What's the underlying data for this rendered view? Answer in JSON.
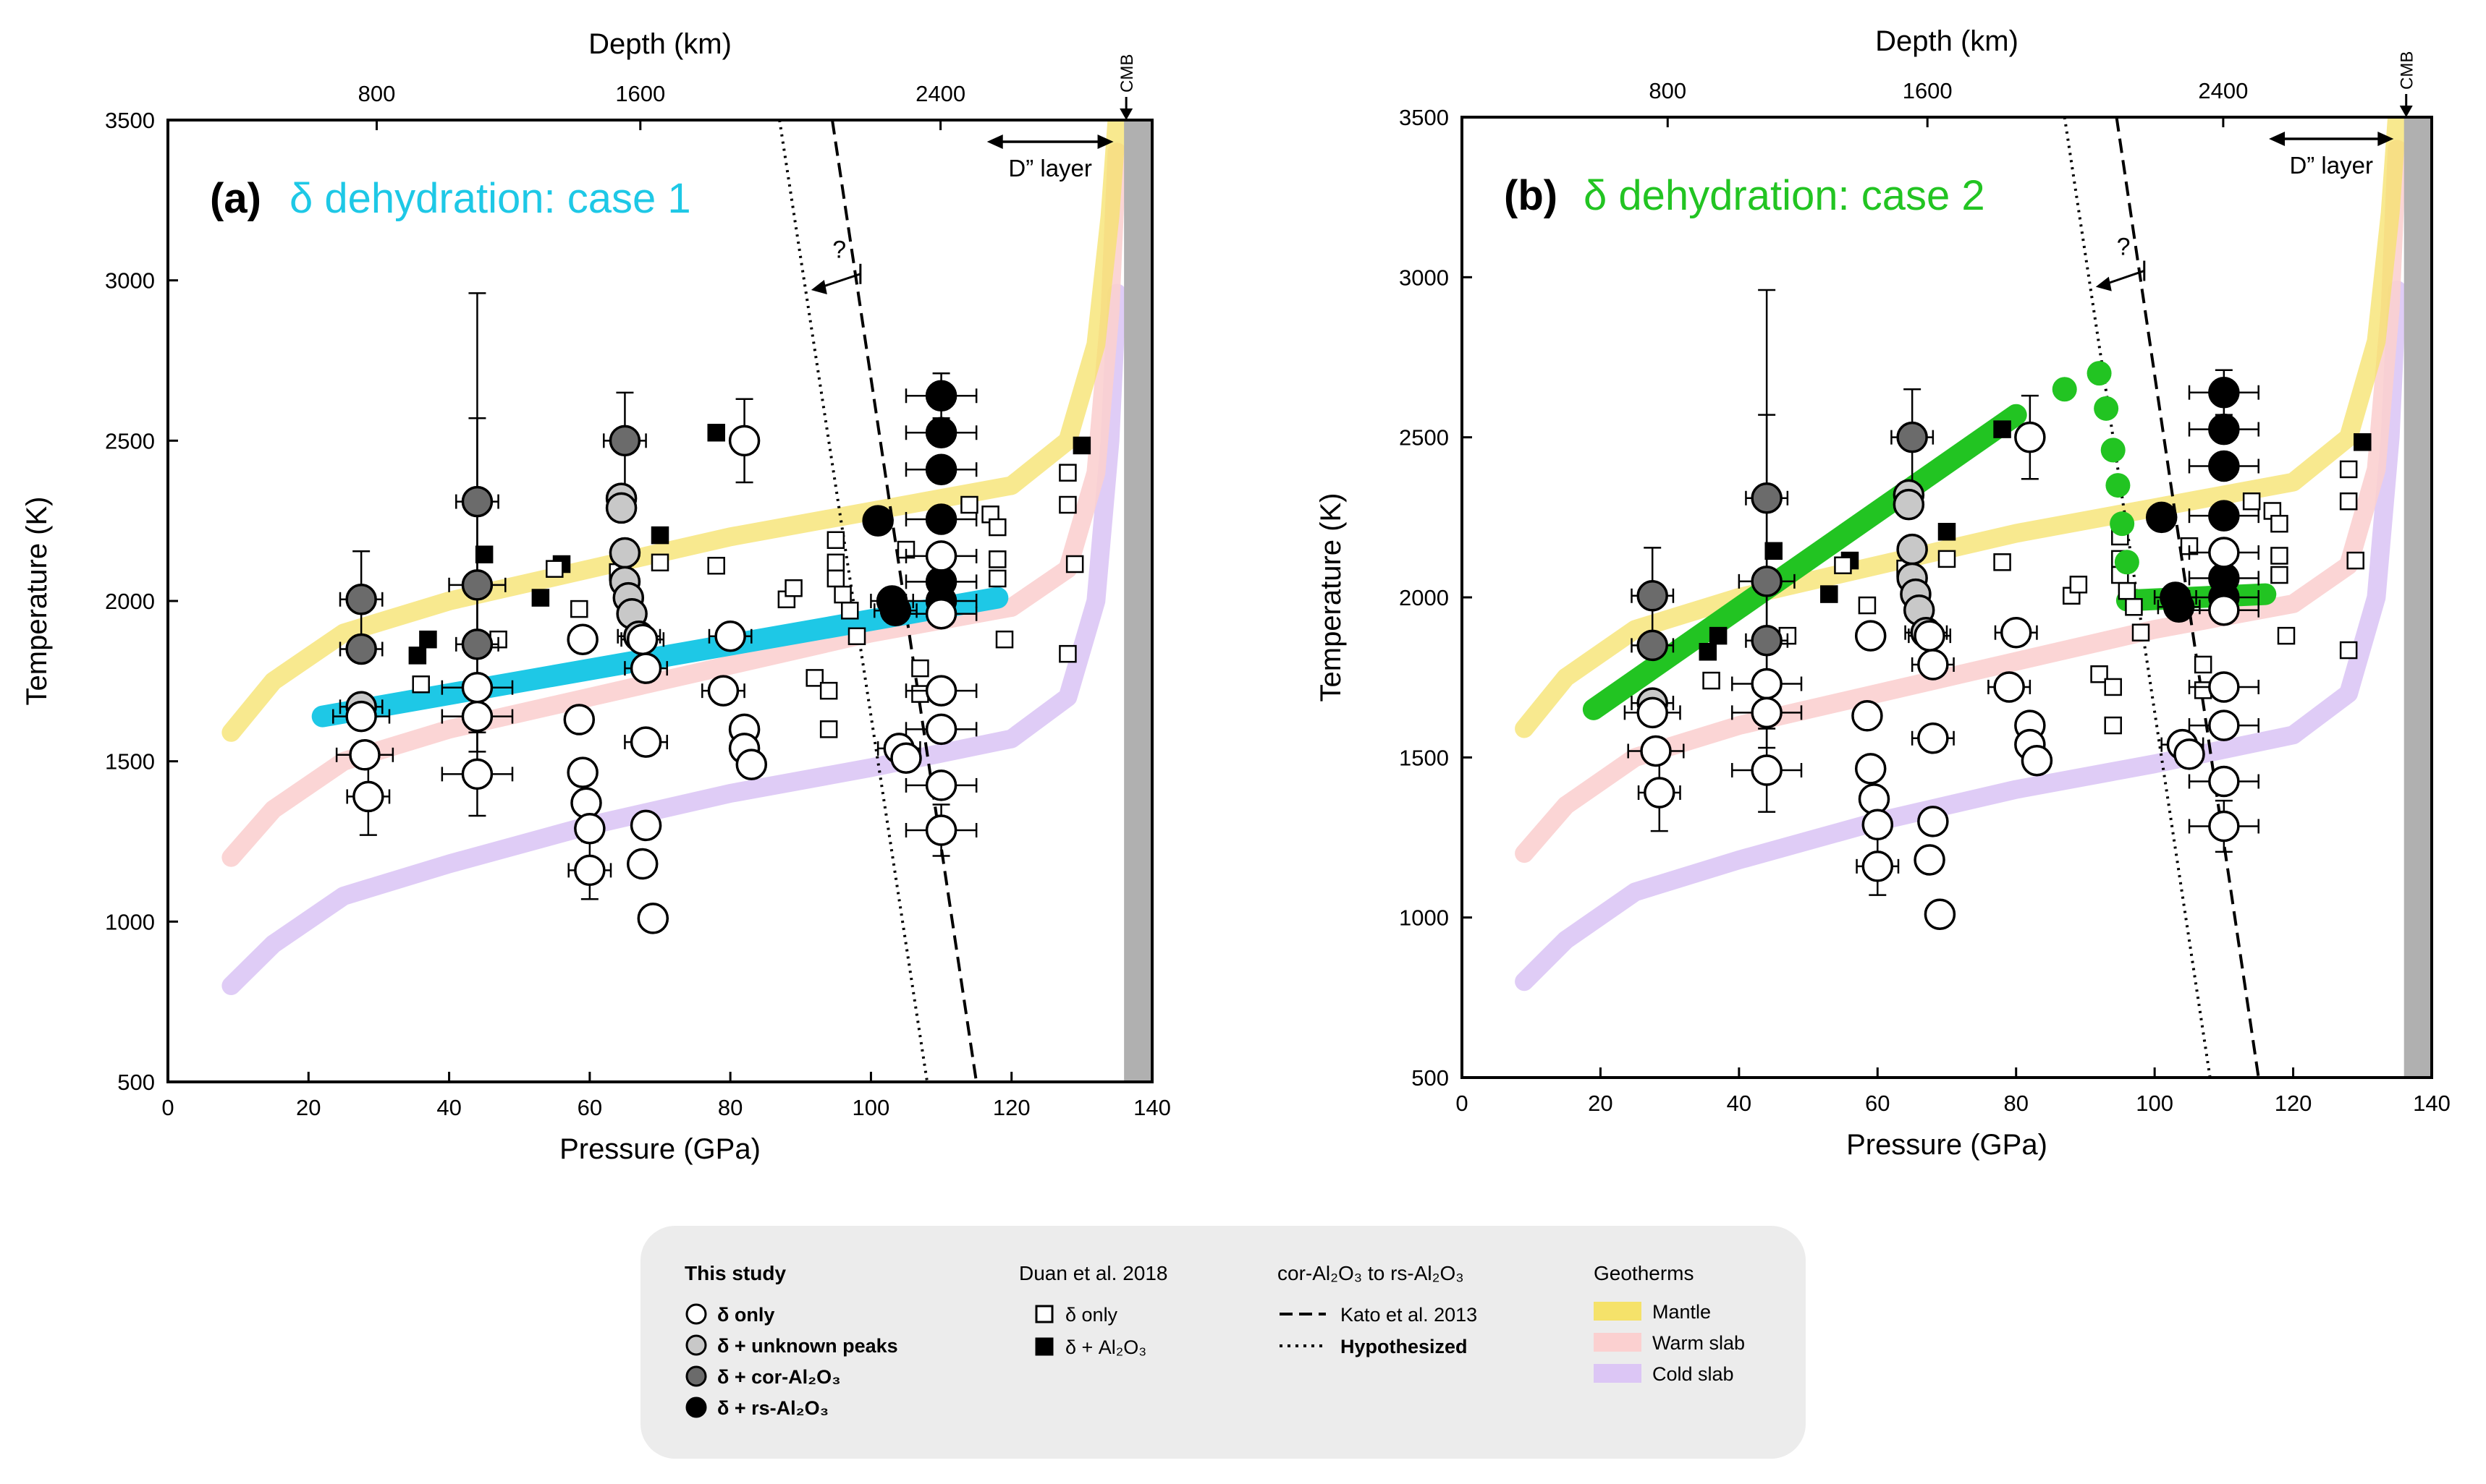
{
  "chart_data": [
    {
      "type": "scatter",
      "panel_label": "(a)",
      "title": "δ dehydration: case 1",
      "title_color": "#1ec8e6",
      "xlabel": "Pressure (GPa)",
      "ylabel": "Temperature (K)",
      "top_xlabel": "Depth (km)",
      "xlim": [
        0,
        140
      ],
      "ylim": [
        500,
        3500
      ],
      "x_ticks": [
        "0",
        "20",
        "40",
        "60",
        "80",
        "100",
        "120",
        "140"
      ],
      "y_ticks": [
        "500",
        "1000",
        "1500",
        "2000",
        "2500",
        "3000",
        "3500"
      ],
      "top_ticks": [
        {
          "label": "800",
          "x": 29.7
        },
        {
          "label": "1600",
          "x": 67.2
        },
        {
          "label": "2400",
          "x": 109.9
        }
      ],
      "cmb_label": "CMB",
      "dlayer_label": "D” layer",
      "question_mark": "?",
      "dehydration_path": [
        [
          22,
          1640
        ],
        [
          118,
          2010
        ]
      ],
      "dehydration_color": "#1ec8e6"
    },
    {
      "type": "scatter",
      "panel_label": "(b)",
      "title": "δ dehydration: case 2",
      "title_color": "#22c422",
      "xlabel": "Pressure (GPa)",
      "ylabel": "Temperature (K)",
      "top_xlabel": "Depth (km)",
      "xlim": [
        0,
        140
      ],
      "ylim": [
        500,
        3500
      ],
      "x_ticks": [
        "0",
        "20",
        "40",
        "60",
        "80",
        "100",
        "120",
        "140"
      ],
      "y_ticks": [
        "500",
        "1000",
        "1500",
        "2000",
        "2500",
        "3000",
        "3500"
      ],
      "top_ticks": [
        {
          "label": "800",
          "x": 29.7
        },
        {
          "label": "1600",
          "x": 67.2
        },
        {
          "label": "2400",
          "x": 109.9
        }
      ],
      "cmb_label": "CMB",
      "dlayer_label": "D” layer",
      "question_mark": "?",
      "dehydration_path": [
        [
          19,
          1650
        ],
        [
          80,
          2570
        ]
      ],
      "dehydration_dots": [
        [
          87,
          2650
        ],
        [
          92,
          2700
        ],
        [
          93,
          2590
        ],
        [
          94,
          2460
        ],
        [
          94.7,
          2350
        ],
        [
          95.3,
          2230
        ],
        [
          96,
          2110
        ]
      ],
      "dehydration_flat": [
        [
          96,
          1990
        ],
        [
          116,
          2010
        ]
      ],
      "dehydration_color": "#22c422"
    }
  ],
  "shared_data": {
    "geotherms": {
      "mantle": [
        [
          9,
          1590
        ],
        [
          15,
          1750
        ],
        [
          25,
          1900
        ],
        [
          40,
          2000
        ],
        [
          60,
          2100
        ],
        [
          80,
          2200
        ],
        [
          100,
          2280
        ],
        [
          120,
          2360
        ],
        [
          128,
          2500
        ],
        [
          132,
          2800
        ],
        [
          134,
          3200
        ],
        [
          135,
          3500
        ]
      ],
      "warm_slab": [
        [
          9,
          1200
        ],
        [
          15,
          1350
        ],
        [
          25,
          1500
        ],
        [
          40,
          1600
        ],
        [
          60,
          1700
        ],
        [
          80,
          1800
        ],
        [
          100,
          1900
        ],
        [
          120,
          1980
        ],
        [
          128,
          2100
        ],
        [
          132,
          2400
        ],
        [
          134,
          2900
        ],
        [
          135,
          3400
        ]
      ],
      "cold_slab": [
        [
          9,
          800
        ],
        [
          15,
          930
        ],
        [
          25,
          1080
        ],
        [
          40,
          1180
        ],
        [
          60,
          1300
        ],
        [
          80,
          1400
        ],
        [
          100,
          1480
        ],
        [
          120,
          1570
        ],
        [
          128,
          1700
        ],
        [
          132,
          2000
        ],
        [
          134,
          2500
        ],
        [
          135,
          2960
        ]
      ]
    },
    "geotherm_colors": {
      "mantle": "#f5e26a",
      "warm_slab": "#fbd0d0",
      "cold_slab": "#dcc6f5"
    },
    "kato_boundary": [
      [
        94.5,
        3500
      ],
      [
        115,
        500
      ]
    ],
    "hypothesized_boundary": [
      [
        87,
        3500
      ],
      [
        108,
        500
      ]
    ],
    "cmb_pressure": 136,
    "this_study": [
      {
        "p": 27.5,
        "t": 2005,
        "c": "cor",
        "xe": 3,
        "ye": 150
      },
      {
        "p": 27.5,
        "t": 1850,
        "c": "cor",
        "xe": 3,
        "ye": 0
      },
      {
        "p": 27.5,
        "t": 1670,
        "c": "unk",
        "xe": 3,
        "ye": 0
      },
      {
        "p": 27.5,
        "t": 1640,
        "c": "delta",
        "xe": 4,
        "ye": 0
      },
      {
        "p": 28,
        "t": 1520,
        "c": "delta",
        "xe": 4,
        "ye": 0
      },
      {
        "p": 28.5,
        "t": 1390,
        "c": "delta",
        "xe": 3,
        "ye": 120
      },
      {
        "p": 44,
        "t": 2310,
        "c": "cor",
        "xe": 3,
        "ye": 650
      },
      {
        "p": 44,
        "t": 2050,
        "c": "cor",
        "xe": 4,
        "ye": 520
      },
      {
        "p": 44,
        "t": 1865,
        "c": "cor",
        "xe": 3,
        "ye": 0
      },
      {
        "p": 44,
        "t": 1730,
        "c": "delta",
        "xe": 5,
        "ye": 0
      },
      {
        "p": 44,
        "t": 1640,
        "c": "delta",
        "xe": 5,
        "ye": 0
      },
      {
        "p": 44,
        "t": 1460,
        "c": "delta",
        "xe": 5,
        "ye": 130
      },
      {
        "p": 59,
        "t": 1880,
        "c": "delta",
        "xe": 0,
        "ye": 0
      },
      {
        "p": 58.5,
        "t": 1630,
        "c": "delta",
        "xe": 0,
        "ye": 0
      },
      {
        "p": 59,
        "t": 1465,
        "c": "delta",
        "xe": 0,
        "ye": 0
      },
      {
        "p": 59.5,
        "t": 1370,
        "c": "delta",
        "xe": 0,
        "ye": 0
      },
      {
        "p": 60,
        "t": 1290,
        "c": "delta",
        "xe": 0,
        "ye": 0
      },
      {
        "p": 60,
        "t": 1160,
        "c": "delta",
        "xe": 3,
        "ye": 90
      },
      {
        "p": 65,
        "t": 2500,
        "c": "cor",
        "xe": 3,
        "ye": 150
      },
      {
        "p": 64.5,
        "t": 2320,
        "c": "unk",
        "xe": 0,
        "ye": 0
      },
      {
        "p": 64.5,
        "t": 2290,
        "c": "unk",
        "xe": 0,
        "ye": 0
      },
      {
        "p": 65,
        "t": 2150,
        "c": "unk",
        "xe": 0,
        "ye": 0
      },
      {
        "p": 65,
        "t": 2060,
        "c": "unk",
        "xe": 0,
        "ye": 0
      },
      {
        "p": 65.5,
        "t": 2010,
        "c": "unk",
        "xe": 0,
        "ye": 0
      },
      {
        "p": 66,
        "t": 1960,
        "c": "unk",
        "xe": 0,
        "ye": 0
      },
      {
        "p": 67,
        "t": 1890,
        "c": "unk",
        "xe": 3,
        "ye": 0
      },
      {
        "p": 67.5,
        "t": 1880,
        "c": "delta",
        "xe": 3,
        "ye": 0
      },
      {
        "p": 68,
        "t": 1790,
        "c": "delta",
        "xe": 3,
        "ye": 0
      },
      {
        "p": 68,
        "t": 1560,
        "c": "delta",
        "xe": 3,
        "ye": 0
      },
      {
        "p": 68,
        "t": 1300,
        "c": "delta",
        "xe": 0,
        "ye": 0
      },
      {
        "p": 67.5,
        "t": 1180,
        "c": "delta",
        "xe": 0,
        "ye": 0
      },
      {
        "p": 69,
        "t": 1010,
        "c": "delta",
        "xe": 0,
        "ye": 0
      },
      {
        "p": 82,
        "t": 2500,
        "c": "delta",
        "xe": 0,
        "ye": 130
      },
      {
        "p": 80,
        "t": 1890,
        "c": "delta",
        "xe": 3,
        "ye": 0
      },
      {
        "p": 79,
        "t": 1720,
        "c": "delta",
        "xe": 3,
        "ye": 0
      },
      {
        "p": 82,
        "t": 1600,
        "c": "delta",
        "xe": 0,
        "ye": 0
      },
      {
        "p": 82,
        "t": 1540,
        "c": "delta",
        "xe": 0,
        "ye": 0
      },
      {
        "p": 83,
        "t": 1490,
        "c": "delta",
        "xe": 0,
        "ye": 0
      },
      {
        "p": 101,
        "t": 2250,
        "c": "rs",
        "xe": 0,
        "ye": 0
      },
      {
        "p": 103,
        "t": 2000,
        "c": "rs",
        "xe": 3,
        "ye": 0
      },
      {
        "p": 103.5,
        "t": 1970,
        "c": "rs",
        "xe": 3,
        "ye": 0
      },
      {
        "p": 104,
        "t": 1540,
        "c": "delta",
        "xe": 3,
        "ye": 0
      },
      {
        "p": 105,
        "t": 1510,
        "c": "delta",
        "xe": 0,
        "ye": 0
      },
      {
        "p": 110,
        "t": 2640,
        "c": "rs",
        "xe": 5,
        "ye": 70
      },
      {
        "p": 110,
        "t": 2525,
        "c": "rs",
        "xe": 5,
        "ye": 0
      },
      {
        "p": 110,
        "t": 2410,
        "c": "rs",
        "xe": 5,
        "ye": 0
      },
      {
        "p": 110,
        "t": 2255,
        "c": "rs",
        "xe": 5,
        "ye": 0
      },
      {
        "p": 110,
        "t": 2060,
        "c": "rs",
        "xe": 5,
        "ye": 0
      },
      {
        "p": 110,
        "t": 2000,
        "c": "rs",
        "xe": 5,
        "ye": 0
      },
      {
        "p": 110,
        "t": 2140,
        "c": "delta",
        "xe": 5,
        "ye": 0
      },
      {
        "p": 110,
        "t": 1960,
        "c": "delta",
        "xe": 5,
        "ye": 0
      },
      {
        "p": 110,
        "t": 1720,
        "c": "delta",
        "xe": 5,
        "ye": 0
      },
      {
        "p": 110,
        "t": 1600,
        "c": "delta",
        "xe": 5,
        "ye": 0
      },
      {
        "p": 110,
        "t": 1425,
        "c": "delta",
        "xe": 5,
        "ye": 0
      },
      {
        "p": 110,
        "t": 1285,
        "c": "delta",
        "xe": 5,
        "ye": 80
      }
    ],
    "duan_2018": [
      {
        "p": 37,
        "t": 1880,
        "s": "al"
      },
      {
        "p": 35.5,
        "t": 1830,
        "s": "al"
      },
      {
        "p": 45,
        "t": 2145,
        "s": "al"
      },
      {
        "p": 53,
        "t": 2010,
        "s": "al"
      },
      {
        "p": 56,
        "t": 2115,
        "s": "al"
      },
      {
        "p": 70,
        "t": 2205,
        "s": "al"
      },
      {
        "p": 78,
        "t": 2525,
        "s": "al"
      },
      {
        "p": 130,
        "t": 2485,
        "s": "al"
      },
      {
        "p": 36,
        "t": 1740,
        "s": "d"
      },
      {
        "p": 47,
        "t": 1880,
        "s": "d"
      },
      {
        "p": 55,
        "t": 2100,
        "s": "d"
      },
      {
        "p": 58.5,
        "t": 1975,
        "s": "d"
      },
      {
        "p": 64,
        "t": 2090,
        "s": "d"
      },
      {
        "p": 70,
        "t": 2120,
        "s": "d"
      },
      {
        "p": 78,
        "t": 2110,
        "s": "d"
      },
      {
        "p": 88,
        "t": 2005,
        "s": "d"
      },
      {
        "p": 89,
        "t": 2040,
        "s": "d"
      },
      {
        "p": 92,
        "t": 1760,
        "s": "d"
      },
      {
        "p": 94,
        "t": 1720,
        "s": "d"
      },
      {
        "p": 94,
        "t": 1600,
        "s": "d"
      },
      {
        "p": 95,
        "t": 2190,
        "s": "d"
      },
      {
        "p": 95,
        "t": 2120,
        "s": "d"
      },
      {
        "p": 95,
        "t": 2070,
        "s": "d"
      },
      {
        "p": 96,
        "t": 2020,
        "s": "d"
      },
      {
        "p": 97,
        "t": 1970,
        "s": "d"
      },
      {
        "p": 98,
        "t": 1890,
        "s": "d"
      },
      {
        "p": 105,
        "t": 2160,
        "s": "d"
      },
      {
        "p": 107,
        "t": 1790,
        "s": "d"
      },
      {
        "p": 107,
        "t": 1710,
        "s": "d"
      },
      {
        "p": 114,
        "t": 2300,
        "s": "d"
      },
      {
        "p": 117,
        "t": 2270,
        "s": "d"
      },
      {
        "p": 118,
        "t": 2230,
        "s": "d"
      },
      {
        "p": 118,
        "t": 2130,
        "s": "d"
      },
      {
        "p": 118,
        "t": 2070,
        "s": "d"
      },
      {
        "p": 119,
        "t": 1880,
        "s": "d"
      },
      {
        "p": 128,
        "t": 2400,
        "s": "d"
      },
      {
        "p": 128,
        "t": 2300,
        "s": "d"
      },
      {
        "p": 129,
        "t": 2115,
        "s": "d"
      },
      {
        "p": 128,
        "t": 1835,
        "s": "d"
      }
    ]
  },
  "legend": {
    "this_study_title": "This study",
    "this_study_items": [
      "δ only",
      "δ + unknown peaks",
      "δ + cor-Al₂O₃",
      "δ + rs-Al₂O₃"
    ],
    "duan_title": "Duan et al. 2018",
    "duan_items": [
      "δ only",
      "δ + Al₂O₃"
    ],
    "boundary_title": "cor-Al₂O₃ to rs-Al₂O₃",
    "boundary_items": [
      "Kato et al. 2013",
      "Hypothesized"
    ],
    "geotherm_title": "Geotherms",
    "geotherm_items": [
      "Mantle",
      "Warm slab",
      "Cold slab"
    ]
  }
}
